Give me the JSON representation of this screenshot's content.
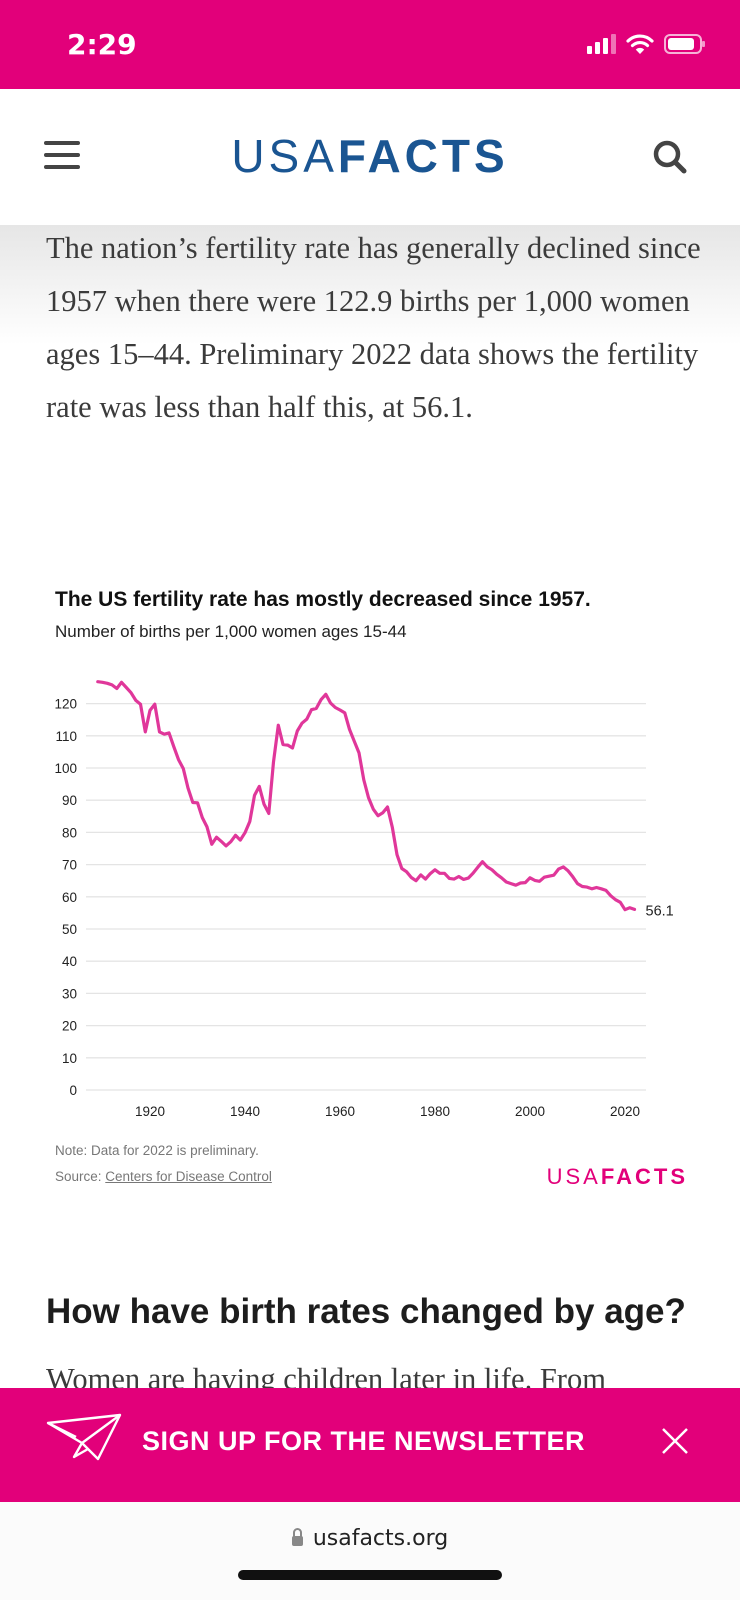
{
  "status_bar": {
    "time": "2:29"
  },
  "nav": {
    "logo_light": "USA",
    "logo_bold": "FACTS"
  },
  "intro_text": "The nation’s fertility rate has generally declined since 1957 when there were 122.9 births per 1,000 women ages 15–44. Preliminary 2022 data shows the fertility rate was less than half this, at 56.1.",
  "chart_footer": {
    "note": "Note: Data for 2022 is preliminary.",
    "source_prefix": "Source: ",
    "source_link": "Centers for Disease Control",
    "logo_light": "USA",
    "logo_bold": "FACTS"
  },
  "section_heading": "How have birth rates changed by age?",
  "section_para": "Women are having children later in life. From",
  "newsletter": {
    "label": "SIGN UP FOR THE NEWSLETTER"
  },
  "browser": {
    "url": "usafacts.org"
  },
  "colors": {
    "brand_pink": "#e2007a",
    "brand_blue": "#1a5592",
    "line": "#e0379a"
  },
  "chart_data": {
    "type": "line",
    "title": "The US fertility rate has mostly decreased since 1957.",
    "subtitle": "Number of births per 1,000 women ages 15-44",
    "xlabel": "",
    "ylabel": "",
    "xlim": [
      1909,
      2022
    ],
    "ylim": [
      0,
      120
    ],
    "yticks": [
      0,
      10,
      20,
      30,
      40,
      50,
      60,
      70,
      80,
      90,
      100,
      110,
      120
    ],
    "xticks": [
      1920,
      1940,
      1960,
      1980,
      2000,
      2020
    ],
    "grid": true,
    "end_label": "56.1",
    "series": [
      {
        "name": "Fertility rate",
        "x": [
          1909,
          1910,
          1911,
          1912,
          1913,
          1914,
          1915,
          1916,
          1917,
          1918,
          1919,
          1920,
          1921,
          1922,
          1923,
          1924,
          1925,
          1926,
          1927,
          1928,
          1929,
          1930,
          1931,
          1932,
          1933,
          1934,
          1935,
          1936,
          1937,
          1938,
          1939,
          1940,
          1941,
          1942,
          1943,
          1944,
          1945,
          1946,
          1947,
          1948,
          1949,
          1950,
          1951,
          1952,
          1953,
          1954,
          1955,
          1956,
          1957,
          1958,
          1959,
          1960,
          1961,
          1962,
          1963,
          1964,
          1965,
          1966,
          1967,
          1968,
          1969,
          1970,
          1971,
          1972,
          1973,
          1974,
          1975,
          1976,
          1977,
          1978,
          1979,
          1980,
          1981,
          1982,
          1983,
          1984,
          1985,
          1986,
          1987,
          1988,
          1989,
          1990,
          1991,
          1992,
          1993,
          1994,
          1995,
          1996,
          1997,
          1998,
          1999,
          2000,
          2001,
          2002,
          2003,
          2004,
          2005,
          2006,
          2007,
          2008,
          2009,
          2010,
          2011,
          2012,
          2013,
          2014,
          2015,
          2016,
          2017,
          2018,
          2019,
          2020,
          2021,
          2022
        ],
        "values": [
          126.8,
          126.6,
          126.3,
          125.8,
          124.7,
          126.6,
          125.0,
          123.4,
          121.0,
          119.8,
          111.2,
          117.9,
          119.8,
          111.2,
          110.5,
          110.9,
          106.6,
          102.6,
          99.8,
          93.8,
          89.3,
          89.2,
          84.6,
          81.7,
          76.3,
          78.5,
          77.2,
          75.8,
          77.1,
          79.1,
          77.6,
          79.9,
          83.4,
          91.5,
          94.3,
          88.8,
          85.9,
          101.9,
          113.3,
          107.3,
          107.1,
          106.2,
          111.5,
          113.9,
          115.2,
          118.1,
          118.5,
          121.2,
          122.9,
          120.2,
          118.8,
          118.0,
          117.1,
          112.0,
          108.3,
          104.7,
          96.3,
          90.8,
          87.2,
          85.2,
          86.1,
          87.9,
          81.6,
          73.1,
          68.8,
          67.8,
          66.0,
          65.0,
          66.8,
          65.5,
          67.2,
          68.4,
          67.3,
          67.3,
          65.7,
          65.5,
          66.3,
          65.4,
          65.8,
          67.3,
          69.2,
          70.9,
          69.3,
          68.4,
          67.0,
          65.9,
          64.6,
          64.1,
          63.6,
          64.3,
          64.4,
          65.9,
          65.1,
          64.8,
          66.1,
          66.4,
          66.7,
          68.6,
          69.3,
          68.1,
          66.2,
          64.1,
          63.2,
          63.0,
          62.5,
          62.9,
          62.5,
          62.0,
          60.3,
          59.1,
          58.3,
          56.0,
          56.6,
          56.1
        ]
      }
    ]
  }
}
